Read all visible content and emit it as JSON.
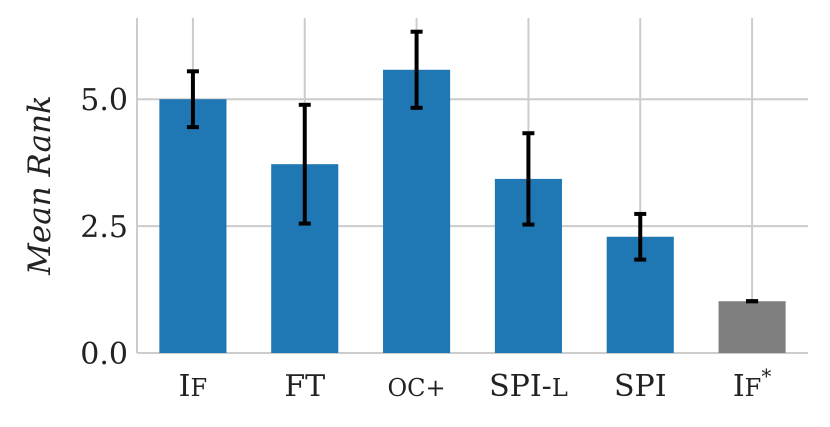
{
  "chart_data": {
    "type": "bar",
    "categories": [
      "IF",
      "FT",
      "OC+",
      "SPI-L",
      "SPI",
      "IF*"
    ],
    "tick_labels": [
      {
        "main": "I",
        "small": "F",
        "sup": ""
      },
      {
        "main": "FT",
        "small": "",
        "sup": ""
      },
      {
        "main": "",
        "small": "OC+",
        "sup": ""
      },
      {
        "main": "SPI-",
        "small": "L",
        "sup": ""
      },
      {
        "main": "SPI",
        "small": "",
        "sup": ""
      },
      {
        "main": "I",
        "small": "F",
        "sup": "*"
      }
    ],
    "values": [
      5.0,
      3.72,
      5.58,
      3.43,
      2.29,
      1.02
    ],
    "errors": [
      0.55,
      1.17,
      0.75,
      0.9,
      0.45,
      0.0
    ],
    "colors": [
      "#1f77b4",
      "#1f77b4",
      "#1f77b4",
      "#1f77b4",
      "#1f77b4",
      "#7f7f7f"
    ],
    "yticks": [
      "0.0",
      "2.5",
      "5.0"
    ],
    "ytick_values": [
      0.0,
      2.5,
      5.0
    ],
    "ylabel": "Mean Rank",
    "xlabel": "",
    "ylim": [
      0,
      6.6
    ],
    "grid": true
  }
}
